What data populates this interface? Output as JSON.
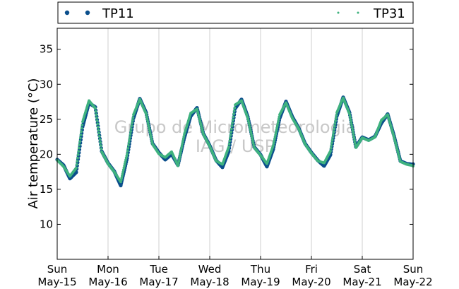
{
  "chart_data": {
    "type": "scatter",
    "ylabel": "Air temperature (°C)",
    "ylim": [
      5,
      38
    ],
    "yticks": [
      10,
      15,
      20,
      25,
      30,
      35
    ],
    "xlim": [
      "2016-05-15",
      "2016-05-22"
    ],
    "xticks": [
      {
        "day": "Sun",
        "date": "May-15"
      },
      {
        "day": "Mon",
        "date": "May-16"
      },
      {
        "day": "Tue",
        "date": "May-17"
      },
      {
        "day": "Wed",
        "date": "May-18"
      },
      {
        "day": "Thu",
        "date": "May-19"
      },
      {
        "day": "Fri",
        "date": "May-20"
      },
      {
        "day": "Sat",
        "date": "May-21"
      },
      {
        "day": "Sun",
        "date": "May-22"
      }
    ],
    "grid": "vertical",
    "legend_position": "top",
    "watermark": [
      "Grupo de Micrometeorologia",
      "IAG / USP"
    ],
    "series": [
      {
        "name": "TP11",
        "color": "#0b4f8c",
        "x": [
          "2016-05-15 00:00",
          "2016-05-15 03:00",
          "2016-05-15 06:00",
          "2016-05-15 09:00",
          "2016-05-15 12:00",
          "2016-05-15 15:00",
          "2016-05-15 18:00",
          "2016-05-15 21:00",
          "2016-05-16 00:00",
          "2016-05-16 03:00",
          "2016-05-16 06:00",
          "2016-05-16 09:00",
          "2016-05-16 12:00",
          "2016-05-16 15:00",
          "2016-05-16 18:00",
          "2016-05-16 21:00",
          "2016-05-17 00:00",
          "2016-05-17 03:00",
          "2016-05-17 06:00",
          "2016-05-17 09:00",
          "2016-05-17 12:00",
          "2016-05-17 15:00",
          "2016-05-17 18:00",
          "2016-05-17 21:00",
          "2016-05-18 00:00",
          "2016-05-18 03:00",
          "2016-05-18 06:00",
          "2016-05-18 09:00",
          "2016-05-18 12:00",
          "2016-05-18 15:00",
          "2016-05-18 18:00",
          "2016-05-18 21:00",
          "2016-05-19 00:00",
          "2016-05-19 03:00",
          "2016-05-19 06:00",
          "2016-05-19 09:00",
          "2016-05-19 12:00",
          "2016-05-19 15:00",
          "2016-05-19 18:00",
          "2016-05-19 21:00",
          "2016-05-20 00:00",
          "2016-05-20 03:00",
          "2016-05-20 06:00",
          "2016-05-20 09:00",
          "2016-05-20 12:00",
          "2016-05-20 15:00",
          "2016-05-20 18:00",
          "2016-05-20 21:00",
          "2016-05-21 00:00",
          "2016-05-21 03:00",
          "2016-05-21 06:00",
          "2016-05-21 09:00",
          "2016-05-21 12:00",
          "2016-05-21 15:00",
          "2016-05-21 18:00",
          "2016-05-21 21:00",
          "2016-05-22 00:00"
        ],
        "values": [
          19.3,
          18.5,
          16.6,
          17.5,
          24.0,
          27.4,
          26.8,
          20.5,
          18.8,
          17.6,
          15.6,
          19.5,
          25.2,
          28.0,
          26.0,
          21.6,
          20.3,
          19.3,
          20.1,
          18.5,
          22.4,
          25.5,
          26.7,
          23.0,
          21.3,
          19.2,
          18.2,
          20.5,
          26.6,
          27.9,
          25.4,
          21.1,
          20.0,
          18.3,
          20.8,
          25.2,
          27.6,
          25.4,
          23.8,
          21.6,
          20.3,
          19.2,
          18.4,
          20.0,
          25.5,
          28.2,
          26.0,
          21.1,
          22.5,
          22.1,
          22.6,
          24.5,
          25.8,
          22.7,
          19.1,
          18.7,
          18.6
        ]
      },
      {
        "name": "TP31",
        "color": "#3fb27f",
        "x": [
          "2016-05-15 00:00",
          "2016-05-15 03:00",
          "2016-05-15 06:00",
          "2016-05-15 09:00",
          "2016-05-15 12:00",
          "2016-05-15 15:00",
          "2016-05-15 18:00",
          "2016-05-15 21:00",
          "2016-05-16 00:00",
          "2016-05-16 03:00",
          "2016-05-16 06:00",
          "2016-05-16 09:00",
          "2016-05-16 12:00",
          "2016-05-16 15:00",
          "2016-05-16 18:00",
          "2016-05-16 21:00",
          "2016-05-17 00:00",
          "2016-05-17 03:00",
          "2016-05-17 06:00",
          "2016-05-17 09:00",
          "2016-05-17 12:00",
          "2016-05-17 15:00",
          "2016-05-17 18:00",
          "2016-05-17 21:00",
          "2016-05-18 00:00",
          "2016-05-18 03:00",
          "2016-05-18 06:00",
          "2016-05-18 09:00",
          "2016-05-18 12:00",
          "2016-05-18 15:00",
          "2016-05-18 18:00",
          "2016-05-18 21:00",
          "2016-05-19 00:00",
          "2016-05-19 03:00",
          "2016-05-19 06:00",
          "2016-05-19 09:00",
          "2016-05-19 12:00",
          "2016-05-19 15:00",
          "2016-05-19 18:00",
          "2016-05-19 21:00",
          "2016-05-20 00:00",
          "2016-05-20 03:00",
          "2016-05-20 06:00",
          "2016-05-20 09:00",
          "2016-05-20 12:00",
          "2016-05-20 15:00",
          "2016-05-20 18:00",
          "2016-05-20 21:00",
          "2016-05-21 00:00",
          "2016-05-21 03:00",
          "2016-05-21 06:00",
          "2016-05-21 09:00",
          "2016-05-21 12:00",
          "2016-05-21 15:00",
          "2016-05-21 18:00",
          "2016-05-21 21:00",
          "2016-05-22 00:00"
        ],
        "values": [
          19.1,
          18.2,
          16.8,
          18.0,
          24.6,
          27.6,
          26.5,
          20.3,
          18.6,
          17.4,
          16.0,
          20.0,
          25.6,
          27.8,
          25.7,
          21.4,
          20.0,
          19.5,
          20.3,
          18.3,
          22.8,
          25.8,
          26.4,
          22.8,
          21.1,
          19.0,
          18.5,
          21.0,
          27.0,
          27.6,
          25.1,
          20.9,
          19.8,
          18.6,
          21.2,
          25.6,
          27.3,
          25.1,
          23.6,
          21.4,
          20.1,
          19.0,
          18.7,
          20.4,
          25.9,
          28.0,
          25.7,
          20.9,
          22.3,
          21.9,
          22.4,
          24.8,
          25.6,
          22.4,
          18.9,
          18.5,
          18.3
        ]
      }
    ]
  }
}
